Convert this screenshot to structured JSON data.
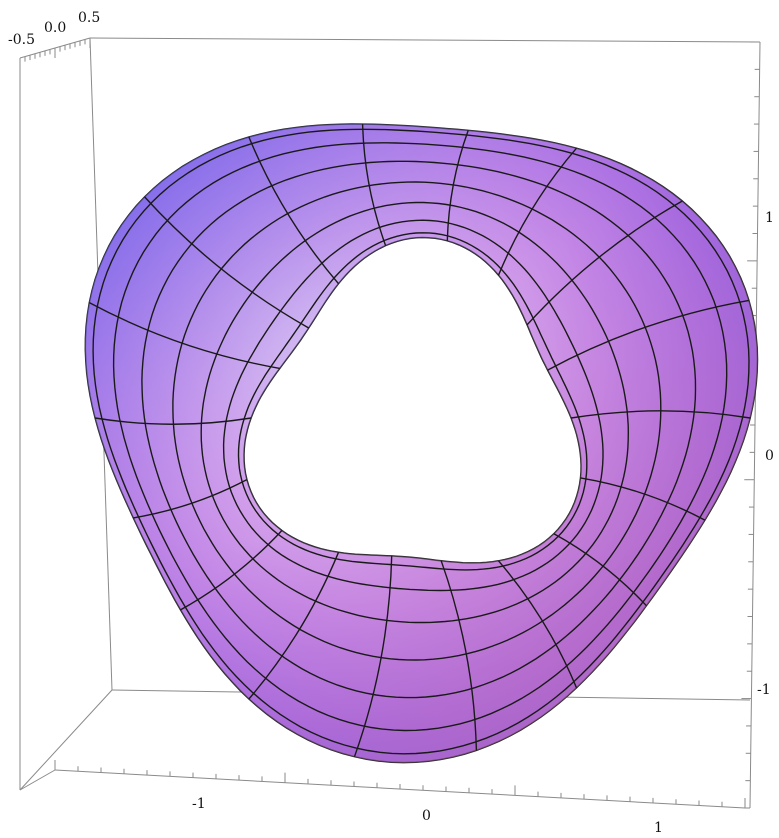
{
  "chart_data": {
    "type": "surface3d",
    "title": "",
    "surface": "tube around a rounded-triangle (trefoil-like) loop",
    "colors": {
      "blue": "#5b5cf0",
      "violet": "#a064e0",
      "pink": "#f0a0d8",
      "salmon": "#e87878",
      "light": "#eeeefc",
      "mesh": "#1a1a1a",
      "box": "#8a8a8a"
    },
    "axes": {
      "x": {
        "ticks": [
          "-1",
          "0",
          "1"
        ]
      },
      "y": {
        "ticks": [
          "1",
          "0",
          "-1"
        ]
      },
      "z": {
        "ticks": [
          "-0.5",
          "0.0",
          "0.5"
        ]
      }
    },
    "mesh": {
      "meridians": 18,
      "parallels": 8
    },
    "grid": false
  }
}
